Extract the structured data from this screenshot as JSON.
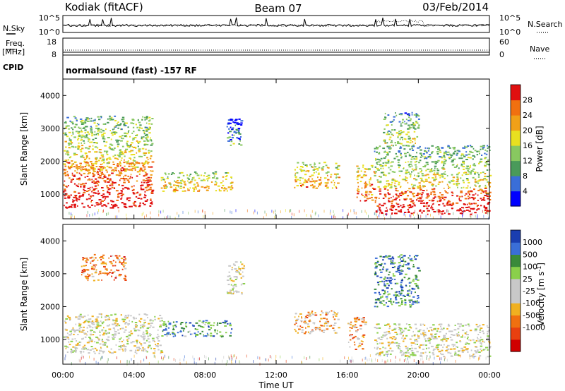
{
  "header": {
    "station": "Kodiak (fitACF)",
    "beam": "Beam 07",
    "date": "03/Feb/2014"
  },
  "noise_panel": {
    "left_label": "N.Sky",
    "right_label": "N.Search",
    "left_ticks": [
      "10^5",
      "10^0"
    ],
    "right_ticks": [
      "10^5",
      "10^0"
    ]
  },
  "freq_panel": {
    "left_label_1": "Freq.",
    "left_label_2": "[MHz]",
    "right_label": "Nave",
    "left_ticks": [
      "18",
      "8"
    ],
    "right_ticks": [
      "60",
      "0"
    ]
  },
  "cpid": {
    "label": "CPID",
    "text": "normalsound (fast) -157 RF"
  },
  "colors": {
    "power_scale": [
      "#0000ff",
      "#3a6ed8",
      "#4a9a5a",
      "#88c860",
      "#e8e020",
      "#f0a018",
      "#f07010",
      "#e01010"
    ],
    "velocity_scale": [
      "#1a3eb0",
      "#3a6ed8",
      "#3a8a3a",
      "#8ad04a",
      "#c8c8c8",
      "#c8c8c8",
      "#f0b020",
      "#f07010",
      "#e84010",
      "#d00000"
    ]
  },
  "chart_data": [
    {
      "type": "heatmap",
      "name": "power",
      "ylabel": "Slant Range [km]",
      "yticks": [
        "4000",
        "3000",
        "2000",
        "1000"
      ],
      "ylim": [
        250,
        4500
      ],
      "colorbar_label": "Power [dB]",
      "colorbar_ticks": [
        "28",
        "24",
        "20",
        "16",
        "12",
        "8",
        "4"
      ],
      "colorbar_range": [
        0,
        32
      ],
      "regions": [
        {
          "t0": 0.0,
          "t1": 5.0,
          "r0": 600,
          "r1": 2000,
          "level": 0.9
        },
        {
          "t0": 0.0,
          "t1": 5.0,
          "r0": 1700,
          "r1": 3400,
          "level": 0.5
        },
        {
          "t0": 5.5,
          "t1": 9.5,
          "r0": 1100,
          "r1": 1700,
          "level": 0.55
        },
        {
          "t0": 9.2,
          "t1": 10.0,
          "r0": 2500,
          "r1": 3300,
          "level": 0.2
        },
        {
          "t0": 13.0,
          "t1": 15.5,
          "r0": 1200,
          "r1": 2000,
          "level": 0.6
        },
        {
          "t0": 16.5,
          "t1": 17.5,
          "r0": 800,
          "r1": 1900,
          "level": 0.7
        },
        {
          "t0": 17.5,
          "t1": 24.0,
          "r0": 400,
          "r1": 1200,
          "level": 0.95
        },
        {
          "t0": 17.5,
          "t1": 24.0,
          "r0": 1200,
          "r1": 2500,
          "level": 0.45
        },
        {
          "t0": 18.0,
          "t1": 20.0,
          "r0": 2500,
          "r1": 3500,
          "level": 0.4
        }
      ]
    },
    {
      "type": "heatmap",
      "name": "velocity",
      "ylabel": "Slant Range [km]",
      "yticks": [
        "4000",
        "3000",
        "2000",
        "1000"
      ],
      "ylim": [
        250,
        4500
      ],
      "colorbar_label": "Velocity [m s",
      "colorbar_label_sup": "-1",
      "colorbar_label_end": "]",
      "colorbar_ticks": [
        "1000",
        "500",
        "100",
        "25",
        "-25",
        "-100",
        "-500",
        "-1000"
      ],
      "colorbar_range": [
        -1000,
        1000
      ],
      "xlabel": "Time UT",
      "xticks": [
        "00:00",
        "04:00",
        "08:00",
        "12:00",
        "16:00",
        "20:00",
        "00:00"
      ],
      "xlim": [
        0,
        24
      ],
      "regions": [
        {
          "t0": 0.0,
          "t1": 5.5,
          "r0": 600,
          "r1": 1800,
          "level": 0.5
        },
        {
          "t0": 1.0,
          "t1": 3.5,
          "r0": 2800,
          "r1": 3600,
          "level": 0.25
        },
        {
          "t0": 5.5,
          "t1": 9.5,
          "r0": 1100,
          "r1": 1600,
          "level": 0.75
        },
        {
          "t0": 9.2,
          "t1": 10.2,
          "r0": 2400,
          "r1": 3400,
          "level": 0.5
        },
        {
          "t0": 13.0,
          "t1": 15.5,
          "r0": 1200,
          "r1": 1900,
          "level": 0.35
        },
        {
          "t0": 16.0,
          "t1": 17.0,
          "r0": 700,
          "r1": 1700,
          "level": 0.3
        },
        {
          "t0": 17.5,
          "t1": 24.0,
          "r0": 500,
          "r1": 1500,
          "level": 0.5
        },
        {
          "t0": 17.5,
          "t1": 20.0,
          "r0": 2000,
          "r1": 3600,
          "level": 0.8
        }
      ]
    }
  ]
}
